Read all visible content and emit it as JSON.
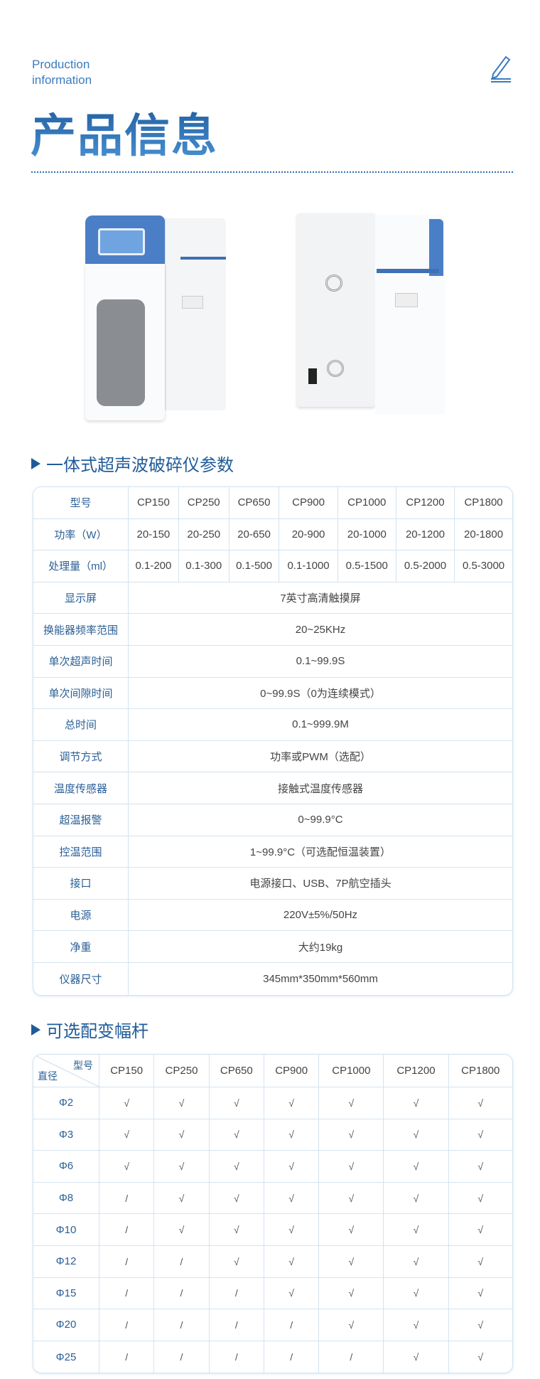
{
  "header": {
    "en_line1": "Production",
    "en_line2": "information",
    "title": "产品信息"
  },
  "section1": {
    "title": "一体式超声波破碎仪参数",
    "models": [
      "CP150",
      "CP250",
      "CP650",
      "CP900",
      "CP1000",
      "CP1200",
      "CP1800"
    ],
    "model_label": "型号",
    "per_model_rows": [
      {
        "label": "功率（W）",
        "values": [
          "20-150",
          "20-250",
          "20-650",
          "20-900",
          "20-1000",
          "20-1200",
          "20-1800"
        ]
      },
      {
        "label": "处理量（ml）",
        "values": [
          "0.1-200",
          "0.1-300",
          "0.1-500",
          "0.1-1000",
          "0.5-1500",
          "0.5-2000",
          "0.5-3000"
        ]
      }
    ],
    "shared_rows": [
      {
        "label": "显示屏",
        "value": "7英寸高清触摸屏"
      },
      {
        "label": "换能器频率范围",
        "value": "20~25KHz"
      },
      {
        "label": "单次超声时间",
        "value": "0.1~99.9S"
      },
      {
        "label": "单次间隙时间",
        "value": "0~99.9S（0为连续模式）"
      },
      {
        "label": "总时间",
        "value": "0.1~999.9M"
      },
      {
        "label": "调节方式",
        "value": "功率或PWM（选配）"
      },
      {
        "label": "温度传感器",
        "value": "接触式温度传感器"
      },
      {
        "label": "超温报警",
        "value": "0~99.9°C"
      },
      {
        "label": "控温范围",
        "value": "1~99.9°C（可选配恒温装置）"
      },
      {
        "label": "接口",
        "value": "电源接口、USB、7P航空插头"
      },
      {
        "label": "电源",
        "value": "220V±5%/50Hz"
      },
      {
        "label": "净重",
        "value": "大约19kg"
      },
      {
        "label": "仪器尺寸",
        "value": "345mm*350mm*560mm"
      }
    ]
  },
  "section2": {
    "title": "可选配变幅杆",
    "corner_top": "型号",
    "corner_bottom": "直径",
    "models": [
      "CP150",
      "CP250",
      "CP650",
      "CP900",
      "CP1000",
      "CP1200",
      "CP1800"
    ],
    "rows": [
      {
        "label": "Φ2",
        "values": [
          "√",
          "√",
          "√",
          "√",
          "√",
          "√",
          "√"
        ]
      },
      {
        "label": "Φ3",
        "values": [
          "√",
          "√",
          "√",
          "√",
          "√",
          "√",
          "√"
        ]
      },
      {
        "label": "Φ6",
        "values": [
          "√",
          "√",
          "√",
          "√",
          "√",
          "√",
          "√"
        ]
      },
      {
        "label": "Φ8",
        "values": [
          "/",
          "√",
          "√",
          "√",
          "√",
          "√",
          "√"
        ]
      },
      {
        "label": "Φ10",
        "values": [
          "/",
          "√",
          "√",
          "√",
          "√",
          "√",
          "√"
        ]
      },
      {
        "label": "Φ12",
        "values": [
          "/",
          "/",
          "√",
          "√",
          "√",
          "√",
          "√"
        ]
      },
      {
        "label": "Φ15",
        "values": [
          "/",
          "/",
          "/",
          "√",
          "√",
          "√",
          "√"
        ]
      },
      {
        "label": "Φ20",
        "values": [
          "/",
          "/",
          "/",
          "/",
          "√",
          "√",
          "√"
        ]
      },
      {
        "label": "Φ25",
        "values": [
          "/",
          "/",
          "/",
          "/",
          "/",
          "√",
          "√"
        ]
      }
    ]
  },
  "colors": {
    "accent": "#1f5b98",
    "border": "#d3e3f0",
    "device_blue": "#4a7fc8"
  }
}
